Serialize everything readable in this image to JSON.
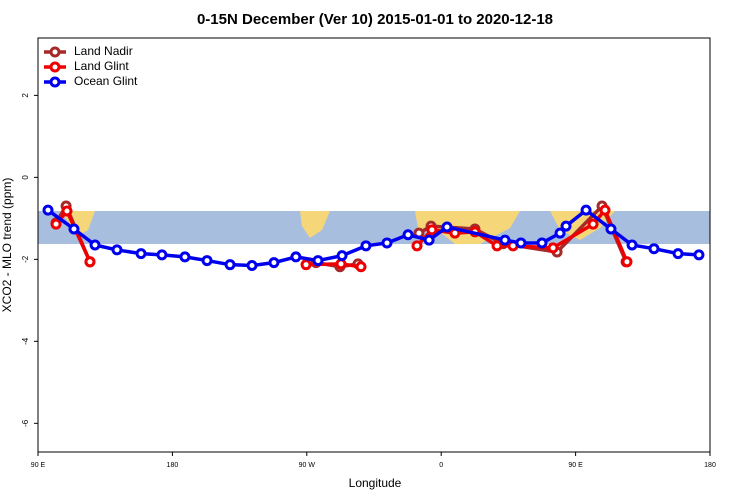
{
  "chart_data": {
    "type": "line",
    "title": "0-15N December (Ver 10)   2015-01-01 to 2020-12-18",
    "x_label": "Longitude",
    "y_label": "XCO2 - MLO trend (ppm)",
    "xlim": [
      90,
      540
    ],
    "xticks": [
      {
        "value": 90,
        "label": "90 E"
      },
      {
        "value": 180,
        "label": "180"
      },
      {
        "value": 270,
        "label": "90 W"
      },
      {
        "value": 360,
        "label": "0"
      },
      {
        "value": 450,
        "label": "90 E"
      },
      {
        "value": 540,
        "label": "180"
      }
    ],
    "ylim": [
      -6.7,
      3.4
    ],
    "yticks": [
      -6,
      -4,
      -2,
      0,
      2
    ],
    "legend": "top-left",
    "series": [
      {
        "name": "Land Nadir",
        "color": "#a52a2a",
        "x": [
          102.1,
          108.8,
          124.8,
          null,
          276.2,
          292.2,
          304.3,
          null,
          345.1,
          353.2,
          382.6,
          401.4,
          437.6,
          467.7,
          483.8
        ],
        "values": [
          -1.11,
          -0.7,
          -2.06,
          null,
          -2.08,
          -2.18,
          -2.11,
          null,
          -1.36,
          -1.19,
          -1.26,
          -1.62,
          -1.82,
          -0.7,
          -2.06
        ]
      },
      {
        "name": "Land Glint",
        "color": "#ee0000",
        "x": [
          102.1,
          109.4,
          124.8,
          null,
          269.5,
          292.9,
          306.3,
          null,
          343.8,
          353.8,
          369.2,
          382.6,
          397.4,
          408.1,
          434.9,
          461.7,
          469.7,
          484.4
        ],
        "values": [
          -1.14,
          -0.82,
          -2.06,
          null,
          -2.13,
          -2.11,
          -2.18,
          null,
          -1.67,
          -1.28,
          -1.36,
          -1.33,
          -1.67,
          -1.67,
          -1.72,
          -1.14,
          -0.8,
          -2.06
        ]
      },
      {
        "name": "Ocean Glint",
        "color": "#0000ee",
        "x": [
          96.7,
          114.1,
          128.2,
          142.9,
          159,
          173,
          188.4,
          203.2,
          218.6,
          233.3,
          248,
          262.7,
          277.5,
          293.6,
          309.6,
          323.7,
          337.8,
          351.9,
          363.9,
          402.7,
          413.4,
          427.5,
          439.6,
          443.6,
          457,
          473.7,
          487.8,
          502.5,
          518.6,
          532.6
        ],
        "values": [
          -0.8,
          -1.26,
          -1.65,
          -1.77,
          -1.86,
          -1.89,
          -1.94,
          -2.03,
          -2.13,
          -2.15,
          -2.08,
          -1.94,
          -2.03,
          -1.91,
          -1.67,
          -1.6,
          -1.4,
          -1.53,
          -1.21,
          -1.53,
          -1.6,
          -1.6,
          -1.36,
          -1.19,
          -0.8,
          -1.26,
          -1.65,
          -1.74,
          -1.86,
          -1.89
        ]
      }
    ]
  }
}
